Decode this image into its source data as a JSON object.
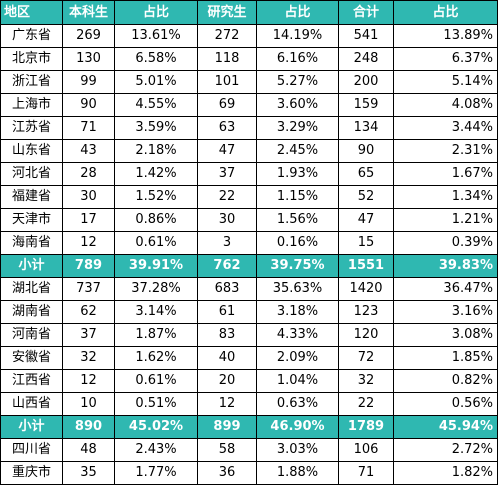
{
  "headers": [
    "地区",
    "本科生",
    "占比",
    "研究生",
    "占比",
    "合计",
    "占比"
  ],
  "rows": [
    {
      "type": "data",
      "cells": [
        "广东省",
        "269",
        "13.61%",
        "272",
        "14.19%",
        "541",
        "13.89%"
      ]
    },
    {
      "type": "data",
      "cells": [
        "北京市",
        "130",
        "6.58%",
        "118",
        "6.16%",
        "248",
        "6.37%"
      ]
    },
    {
      "type": "data",
      "cells": [
        "浙江省",
        "99",
        "5.01%",
        "101",
        "5.27%",
        "200",
        "5.14%"
      ]
    },
    {
      "type": "data",
      "cells": [
        "上海市",
        "90",
        "4.55%",
        "69",
        "3.60%",
        "159",
        "4.08%"
      ]
    },
    {
      "type": "data",
      "cells": [
        "江苏省",
        "71",
        "3.59%",
        "63",
        "3.29%",
        "134",
        "3.44%"
      ]
    },
    {
      "type": "data",
      "cells": [
        "山东省",
        "43",
        "2.18%",
        "47",
        "2.45%",
        "90",
        "2.31%"
      ]
    },
    {
      "type": "data",
      "cells": [
        "河北省",
        "28",
        "1.42%",
        "37",
        "1.93%",
        "65",
        "1.67%"
      ]
    },
    {
      "type": "data",
      "cells": [
        "福建省",
        "30",
        "1.52%",
        "22",
        "1.15%",
        "52",
        "1.34%"
      ]
    },
    {
      "type": "data",
      "cells": [
        "天津市",
        "17",
        "0.86%",
        "30",
        "1.56%",
        "47",
        "1.21%"
      ]
    },
    {
      "type": "data",
      "cells": [
        "海南省",
        "12",
        "0.61%",
        "3",
        "0.16%",
        "15",
        "0.39%"
      ]
    },
    {
      "type": "subtotal",
      "cells": [
        "小计",
        "789",
        "39.91%",
        "762",
        "39.75%",
        "1551",
        "39.83%"
      ]
    },
    {
      "type": "data",
      "cells": [
        "湖北省",
        "737",
        "37.28%",
        "683",
        "35.63%",
        "1420",
        "36.47%"
      ]
    },
    {
      "type": "data",
      "cells": [
        "湖南省",
        "62",
        "3.14%",
        "61",
        "3.18%",
        "123",
        "3.16%"
      ]
    },
    {
      "type": "data",
      "cells": [
        "河南省",
        "37",
        "1.87%",
        "83",
        "4.33%",
        "120",
        "3.08%"
      ]
    },
    {
      "type": "data",
      "cells": [
        "安徽省",
        "32",
        "1.62%",
        "40",
        "2.09%",
        "72",
        "1.85%"
      ]
    },
    {
      "type": "data",
      "cells": [
        "江西省",
        "12",
        "0.61%",
        "20",
        "1.04%",
        "32",
        "0.82%"
      ]
    },
    {
      "type": "data",
      "cells": [
        "山西省",
        "10",
        "0.51%",
        "12",
        "0.63%",
        "22",
        "0.56%"
      ]
    },
    {
      "type": "subtotal",
      "cells": [
        "小计",
        "890",
        "45.02%",
        "899",
        "46.90%",
        "1789",
        "45.94%"
      ]
    },
    {
      "type": "data",
      "cells": [
        "四川省",
        "48",
        "2.43%",
        "58",
        "3.03%",
        "106",
        "2.72%"
      ]
    },
    {
      "type": "data",
      "cells": [
        "重庆市",
        "35",
        "1.77%",
        "36",
        "1.88%",
        "71",
        "1.82%"
      ]
    }
  ],
  "colors": {
    "header_bg": "#2fb8b1",
    "subtotal_bg": "#2fb8b1",
    "header_text": "#ffffff",
    "grid": "#000000"
  }
}
